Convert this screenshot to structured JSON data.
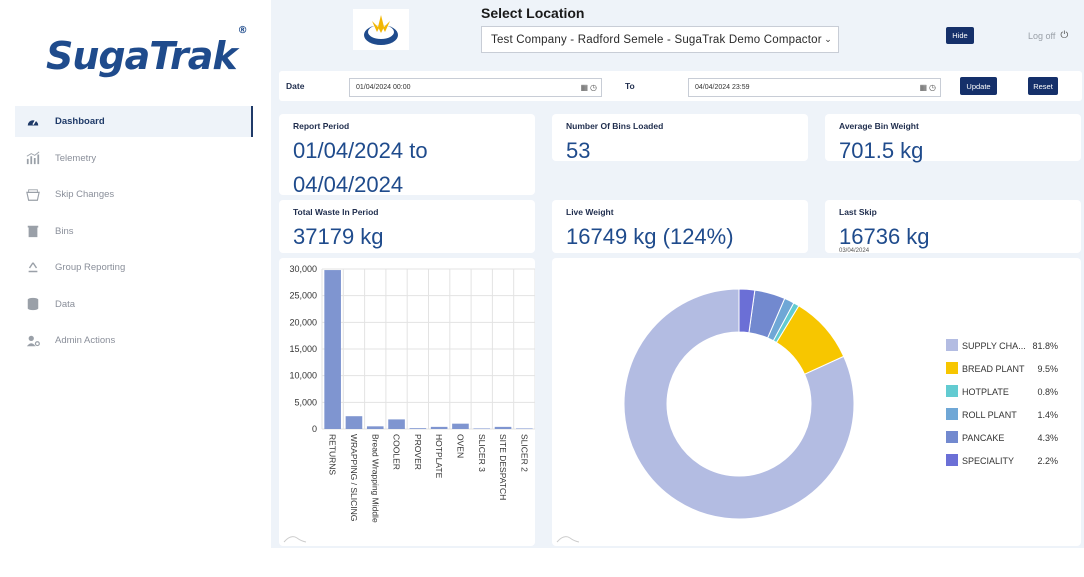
{
  "brand": {
    "name": "SugaTrak",
    "mark": "®"
  },
  "sidebar": {
    "items": [
      {
        "label": "Dashboard",
        "icon": "gauge-icon",
        "active": true
      },
      {
        "label": "Telemetry",
        "icon": "bar-chart-icon",
        "active": false
      },
      {
        "label": "Skip Changes",
        "icon": "skip-icon",
        "active": false
      },
      {
        "label": "Bins",
        "icon": "trash-icon",
        "active": false
      },
      {
        "label": "Group Reporting",
        "icon": "recycle-icon",
        "active": false
      },
      {
        "label": "Data",
        "icon": "database-icon",
        "active": false
      },
      {
        "label": "Admin Actions",
        "icon": "user-gear-icon",
        "active": false
      }
    ]
  },
  "header": {
    "title": "Select Location",
    "location": "Test Company - Radford Semele - SugaTrak Demo Compactor",
    "hide_label": "Hide",
    "logoff_label": "Log off"
  },
  "filters": {
    "date_label": "Date",
    "from_value": "01/04/2024 00:00",
    "to_label": "To",
    "to_value": "04/04/2024 23:59",
    "update_label": "Update",
    "reset_label": "Reset"
  },
  "cards": {
    "report_period": {
      "title": "Report Period",
      "line1": "01/04/2024 to",
      "line2": "04/04/2024"
    },
    "bins_loaded": {
      "title": "Number Of Bins Loaded",
      "value": "53"
    },
    "avg_weight": {
      "title": "Average Bin Weight",
      "value": "701.5 kg"
    },
    "total_waste": {
      "title": "Total Waste In Period",
      "value": "37179 kg"
    },
    "live_weight": {
      "title": "Live Weight",
      "value": "16749 kg (124%)"
    },
    "last_skip": {
      "title": "Last Skip",
      "value": "16736 kg",
      "date": "03/04/2024"
    }
  },
  "chart_data": [
    {
      "type": "bar",
      "categories": [
        "RETURNS",
        "WRAPPING / SLICING",
        "Bread Wrapping Middle",
        "COOLER",
        "PROVER",
        "HOTPLATE",
        "OVEN",
        "SLICER 3",
        "SITE DESPATCH",
        "SLICER 2"
      ],
      "values": [
        29800,
        2400,
        500,
        1800,
        150,
        400,
        1000,
        100,
        400,
        100
      ],
      "yticks": [
        "30,000",
        "25,000",
        "20,000",
        "15,000",
        "10,000",
        "5,000",
        "0"
      ],
      "ylim": [
        0,
        30000
      ],
      "color": "#7f95d0",
      "grid": true
    },
    {
      "type": "pie",
      "legend": [
        {
          "label": "SUPPLY CHA...",
          "pct": "81.8%",
          "value": 81.8,
          "color": "#b3bce2"
        },
        {
          "label": "BREAD PLANT",
          "pct": "9.5%",
          "value": 9.5,
          "color": "#f7c600"
        },
        {
          "label": "HOTPLATE",
          "pct": "0.8%",
          "value": 0.8,
          "color": "#62cbd1"
        },
        {
          "label": "ROLL PLANT",
          "pct": "1.4%",
          "value": 1.4,
          "color": "#6fa7d6"
        },
        {
          "label": "PANCAKE",
          "pct": "4.3%",
          "value": 4.3,
          "color": "#7289cf"
        },
        {
          "label": "SPECIALITY",
          "pct": "2.2%",
          "value": 2.2,
          "color": "#6b6fd6"
        }
      ],
      "legend_position": "right"
    }
  ]
}
